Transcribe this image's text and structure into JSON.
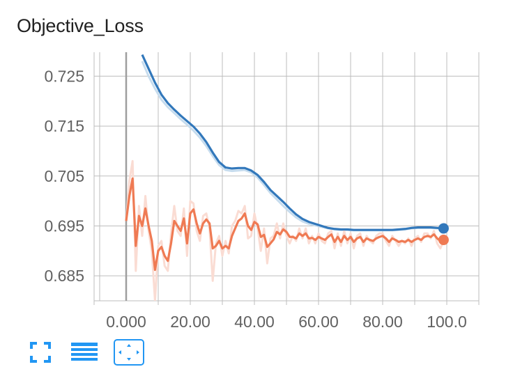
{
  "title": "Objective_Loss",
  "colors": {
    "blue": "#3278bb",
    "blue_raw": "#c6dcee",
    "orange": "#ef7a53",
    "orange_raw": "#fadcd3",
    "grid": "#bdbdbd",
    "zero_line": "#9e9e9e",
    "toolbar": "#2196f3"
  },
  "toolbar": [
    {
      "icon": "fullscreen-icon",
      "active": false
    },
    {
      "icon": "list-icon",
      "active": false
    },
    {
      "icon": "fit-domain-icon",
      "active": true
    }
  ],
  "chart_data": {
    "type": "line",
    "title": "Objective_Loss",
    "xlabel": "",
    "ylabel": "",
    "xlim": [
      -10,
      110
    ],
    "ylim": [
      0.68,
      0.7298
    ],
    "x_ticks": [
      0,
      20,
      40,
      60,
      80,
      100
    ],
    "x_tick_labels": [
      "0.000",
      "20.00",
      "40.00",
      "60.00",
      "80.00",
      "100.0"
    ],
    "y_ticks": [
      0.685,
      0.695,
      0.705,
      0.715,
      0.725
    ],
    "y_tick_labels": [
      "0.685",
      "0.695",
      "0.705",
      "0.715",
      "0.725"
    ],
    "grid": true,
    "series": [
      {
        "color": "#3278bb",
        "raw_color": "#c6dcee",
        "x": [
          5,
          7,
          9,
          11,
          13,
          15,
          17,
          19,
          21,
          23,
          25,
          27,
          29,
          31,
          33,
          35,
          37,
          39,
          41,
          43,
          45,
          47,
          49,
          51,
          53,
          55,
          57,
          59,
          61,
          63,
          65,
          67,
          69,
          71,
          73,
          75,
          77,
          79,
          81,
          83,
          85,
          87,
          89,
          91,
          93,
          95,
          97,
          99
        ],
        "smoothed": [
          0.7293,
          0.7265,
          0.7237,
          0.7213,
          0.7196,
          0.7183,
          0.7171,
          0.716,
          0.7149,
          0.7135,
          0.7118,
          0.7097,
          0.7078,
          0.7067,
          0.7065,
          0.7066,
          0.7066,
          0.7061,
          0.7052,
          0.7038,
          0.7022,
          0.701,
          0.6998,
          0.6985,
          0.6973,
          0.6964,
          0.6958,
          0.6954,
          0.695,
          0.6946,
          0.6944,
          0.6943,
          0.6943,
          0.6942,
          0.6942,
          0.6942,
          0.6942,
          0.6942,
          0.6942,
          0.6942,
          0.6943,
          0.6944,
          0.6946,
          0.6947,
          0.6947,
          0.6947,
          0.6946,
          0.6945
        ],
        "raw": [
          0.728,
          0.725,
          0.7225,
          0.7203,
          0.7188,
          0.7176,
          0.7164,
          0.7153,
          0.7141,
          0.7127,
          0.711,
          0.709,
          0.7072,
          0.7062,
          0.706,
          0.7061,
          0.7062,
          0.7057,
          0.7047,
          0.7032,
          0.7016,
          0.7003,
          0.699,
          0.6978,
          0.6967,
          0.6959,
          0.6954,
          0.6951,
          0.6948,
          0.6945,
          0.6943,
          0.6942,
          0.6942,
          0.6941,
          0.6941,
          0.6941,
          0.6941,
          0.6941,
          0.6941,
          0.6941,
          0.6942,
          0.6943,
          0.6945,
          0.6946,
          0.6946,
          0.6946,
          0.6945,
          0.6944
        ],
        "end_point": {
          "x": 99,
          "y": 0.6945
        }
      },
      {
        "color": "#ef7a53",
        "raw_color": "#fadcd3",
        "x": [
          0,
          1,
          2,
          3,
          4,
          5,
          6,
          7,
          8,
          9,
          10,
          11,
          12,
          13,
          14,
          15,
          16,
          17,
          18,
          19,
          20,
          21,
          22,
          23,
          24,
          25,
          26,
          27,
          28,
          29,
          30,
          31,
          32,
          33,
          34,
          35,
          36,
          37,
          38,
          39,
          40,
          41,
          42,
          43,
          44,
          45,
          46,
          47,
          48,
          49,
          50,
          51,
          52,
          53,
          54,
          55,
          56,
          57,
          58,
          59,
          60,
          61,
          62,
          63,
          64,
          65,
          66,
          67,
          68,
          69,
          70,
          71,
          72,
          73,
          74,
          75,
          76,
          77,
          78,
          79,
          80,
          81,
          82,
          83,
          84,
          85,
          86,
          87,
          88,
          89,
          90,
          91,
          92,
          93,
          94,
          95,
          96,
          97,
          98,
          99
        ],
        "smoothed": [
          0.696,
          0.701,
          0.7045,
          0.691,
          0.697,
          0.695,
          0.6985,
          0.695,
          0.692,
          0.6862,
          0.69,
          0.6908,
          0.689,
          0.688,
          0.6915,
          0.696,
          0.695,
          0.694,
          0.6965,
          0.6915,
          0.6975,
          0.6983,
          0.6955,
          0.6935,
          0.6955,
          0.6963,
          0.6955,
          0.6905,
          0.691,
          0.692,
          0.6905,
          0.691,
          0.6905,
          0.693,
          0.6945,
          0.696,
          0.6965,
          0.6975,
          0.695,
          0.6942,
          0.6958,
          0.6953,
          0.6928,
          0.6932,
          0.6908,
          0.6915,
          0.6923,
          0.6938,
          0.6933,
          0.6943,
          0.6938,
          0.6928,
          0.6928,
          0.6925,
          0.6935,
          0.693,
          0.6935,
          0.6925,
          0.6926,
          0.6922,
          0.6928,
          0.6925,
          0.6922,
          0.6928,
          0.6933,
          0.6918,
          0.6928,
          0.6918,
          0.693,
          0.6922,
          0.6928,
          0.6918,
          0.6925,
          0.6928,
          0.6918,
          0.6925,
          0.6922,
          0.692,
          0.6925,
          0.6928,
          0.693,
          0.6925,
          0.6918,
          0.6925,
          0.6922,
          0.6918,
          0.692,
          0.6918,
          0.6922,
          0.6918,
          0.6922,
          0.6925,
          0.6922,
          0.6928,
          0.693,
          0.6928,
          0.6933,
          0.6925,
          0.692,
          0.6922
        ],
        "raw": [
          0.696,
          0.704,
          0.708,
          0.686,
          0.699,
          0.693,
          0.701,
          0.694,
          0.69,
          0.68,
          0.691,
          0.692,
          0.687,
          0.686,
          0.6935,
          0.699,
          0.694,
          0.693,
          0.6985,
          0.689,
          0.7,
          0.6995,
          0.694,
          0.692,
          0.697,
          0.6975,
          0.6945,
          0.684,
          0.6915,
          0.693,
          0.689,
          0.692,
          0.6895,
          0.695,
          0.696,
          0.698,
          0.6975,
          0.699,
          0.6925,
          0.693,
          0.6975,
          0.6945,
          0.69,
          0.6945,
          0.6875,
          0.6925,
          0.693,
          0.6955,
          0.6925,
          0.6955,
          0.693,
          0.6915,
          0.693,
          0.692,
          0.6945,
          0.6925,
          0.6945,
          0.6915,
          0.693,
          0.6915,
          0.6935,
          0.692,
          0.6915,
          0.6935,
          0.694,
          0.6905,
          0.6935,
          0.691,
          0.694,
          0.6915,
          0.6935,
          0.6905,
          0.693,
          0.6935,
          0.691,
          0.693,
          0.692,
          0.6915,
          0.693,
          0.6935,
          0.6935,
          0.692,
          0.691,
          0.693,
          0.692,
          0.691,
          0.692,
          0.6915,
          0.6925,
          0.691,
          0.6925,
          0.693,
          0.6918,
          0.6935,
          0.6935,
          0.6925,
          0.694,
          0.6915,
          0.6905,
          0.692
        ],
        "end_point": {
          "x": 99,
          "y": 0.6922
        }
      }
    ]
  }
}
